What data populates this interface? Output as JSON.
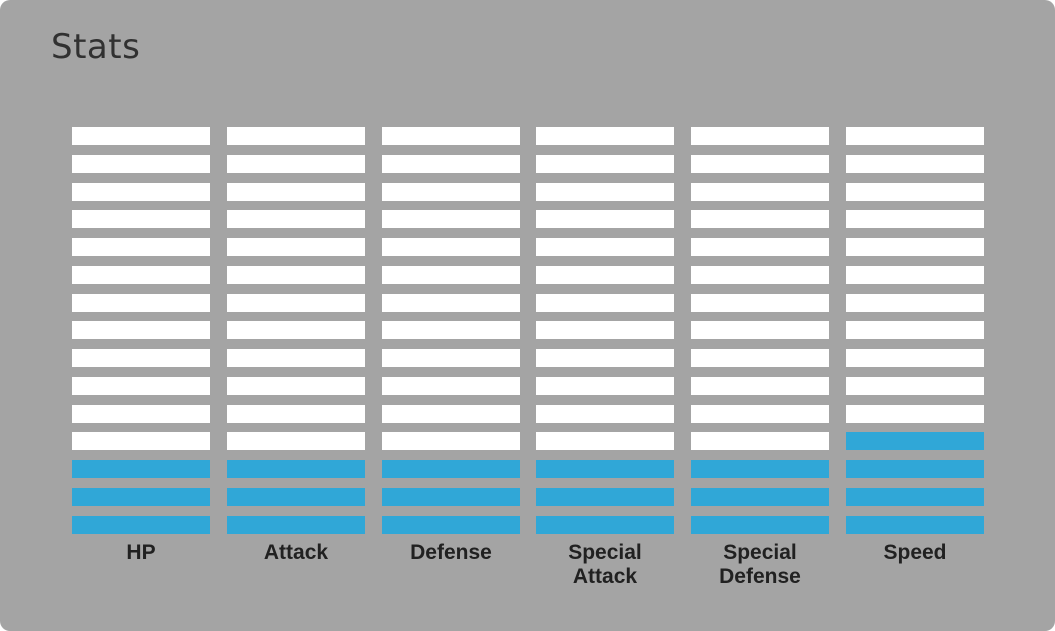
{
  "title": "Stats",
  "chart_data": {
    "type": "bar",
    "segments_total": 15,
    "categories": [
      "HP",
      "Attack",
      "Defense",
      "Special Attack",
      "Special Defense",
      "Speed"
    ],
    "label_lines": [
      [
        "HP"
      ],
      [
        "Attack"
      ],
      [
        "Defense"
      ],
      [
        "Special",
        "Attack"
      ],
      [
        "Special",
        "Defense"
      ],
      [
        "Speed"
      ]
    ],
    "values": [
      3,
      3,
      3,
      3,
      3,
      4
    ],
    "colors": {
      "filled": "#30a7d7",
      "empty": "#ffffff",
      "background": "#a4a4a4"
    }
  }
}
